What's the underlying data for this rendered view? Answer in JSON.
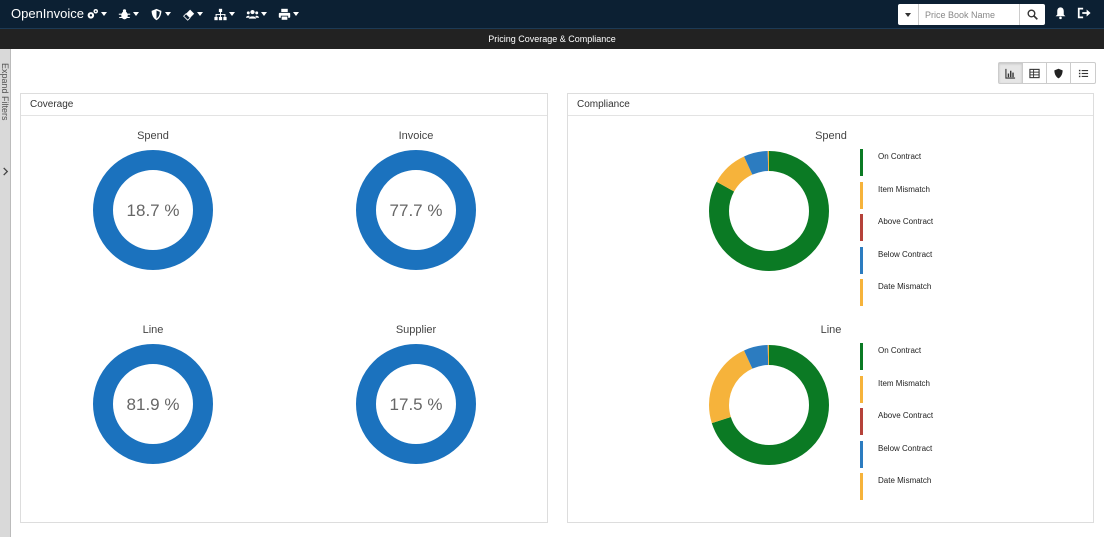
{
  "app": {
    "title": "OpenInvoice"
  },
  "nav": [
    {
      "icon": "settings-gears-icon"
    },
    {
      "icon": "bug-icon"
    },
    {
      "icon": "shield-icon"
    },
    {
      "icon": "eraser-icon"
    },
    {
      "icon": "hierarchy-icon"
    },
    {
      "icon": "users-icon"
    },
    {
      "icon": "print-icon"
    }
  ],
  "search": {
    "placeholder": "Price Book Name"
  },
  "page": {
    "title": "Pricing Coverage & Compliance"
  },
  "sidebar": {
    "expand_label": "Expand Filters"
  },
  "view_toggles": [
    "chart-view-icon",
    "table-view-icon",
    "shield-view-icon",
    "list-view-icon"
  ],
  "coverage": {
    "title": "Coverage",
    "items": [
      {
        "label": "Spend",
        "value_text": "18.7 %"
      },
      {
        "label": "Invoice",
        "value_text": "77.7 %"
      },
      {
        "label": "Line",
        "value_text": "81.9 %"
      },
      {
        "label": "Supplier",
        "value_text": "17.5 %"
      }
    ],
    "ring_color": "#1b72be"
  },
  "compliance": {
    "title": "Compliance",
    "legend": [
      {
        "label": "On Contract",
        "color": "#0b7a24"
      },
      {
        "label": "Item Mismatch",
        "color": "#f6b33b"
      },
      {
        "label": "Above Contract",
        "color": "#b5423a"
      },
      {
        "label": "Below Contract",
        "color": "#2c7cc0"
      },
      {
        "label": "Date Mismatch",
        "color": "#f6b33b"
      }
    ],
    "charts": [
      {
        "label": "Spend",
        "shares": [
          0.83,
          0.1,
          0.0,
          0.065,
          0.005
        ]
      },
      {
        "label": "Line",
        "shares": [
          0.7,
          0.23,
          0.0,
          0.065,
          0.005
        ]
      }
    ]
  }
}
